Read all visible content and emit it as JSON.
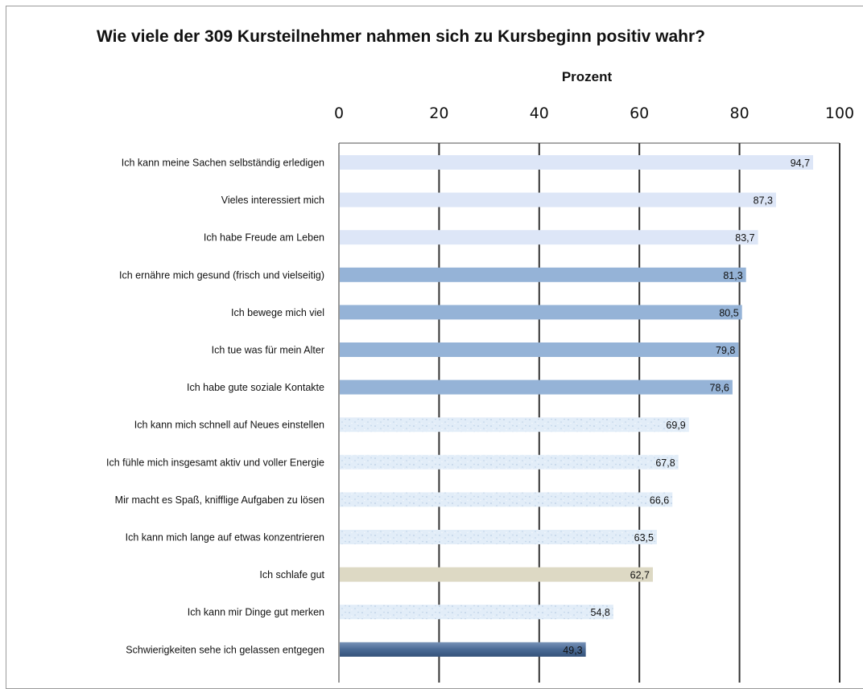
{
  "chart_data": {
    "type": "bar",
    "orientation": "horizontal",
    "title": "Wie viele der 309 Kursteilnehmer nahmen sich zu Kursbeginn positiv wahr?",
    "xlabel": "Prozent",
    "ylabel": "",
    "xlim": [
      0,
      100
    ],
    "xticks": [
      "0",
      "20",
      "40",
      "60",
      "80",
      "100"
    ],
    "x_axis_position": "top",
    "grid": true,
    "legend": "none",
    "categories": [
      "Ich kann meine Sachen selbständig erledigen",
      "Vieles interessiert mich",
      "Ich habe Freude am Leben",
      "Ich ernähre mich gesund (frisch und vielseitig)",
      "Ich bewege mich viel",
      "Ich tue was für mein Alter",
      "Ich habe gute soziale Kontakte",
      "Ich kann mich schnell auf Neues einstellen",
      "Ich fühle mich insgesamt aktiv und voller Energie",
      "Mir macht es Spaß, knifflige Aufgaben zu lösen",
      "Ich kann mich lange auf etwas konzentrieren",
      "Ich schlafe gut",
      "Ich kann mir Dinge gut merken",
      "Schwierigkeiten sehe ich gelassen entgegen"
    ],
    "values": [
      94.7,
      87.3,
      83.7,
      81.3,
      80.5,
      79.8,
      78.6,
      69.9,
      67.8,
      66.6,
      63.5,
      62.7,
      54.8,
      49.3
    ],
    "data_labels": [
      "94,7",
      "87,3",
      "83,7",
      "81,3",
      "80,5",
      "79,8",
      "78,6",
      "69,9",
      "67,8",
      "66,6",
      "63,5",
      "62,7",
      "54,8",
      "49,3"
    ],
    "bar_colors": [
      "#dde6f7",
      "#dde6f7",
      "#dde6f7",
      "#95b3d7",
      "#95b3d7",
      "#95b3d7",
      "#95b3d7",
      "#e2edf8",
      "#e2edf8",
      "#e2edf8",
      "#e2edf8",
      "#ddd9c4",
      "#e2edf8",
      "#4a6a95"
    ],
    "colors": {
      "gridline": "#333333",
      "border": "#9a9a9a"
    }
  }
}
